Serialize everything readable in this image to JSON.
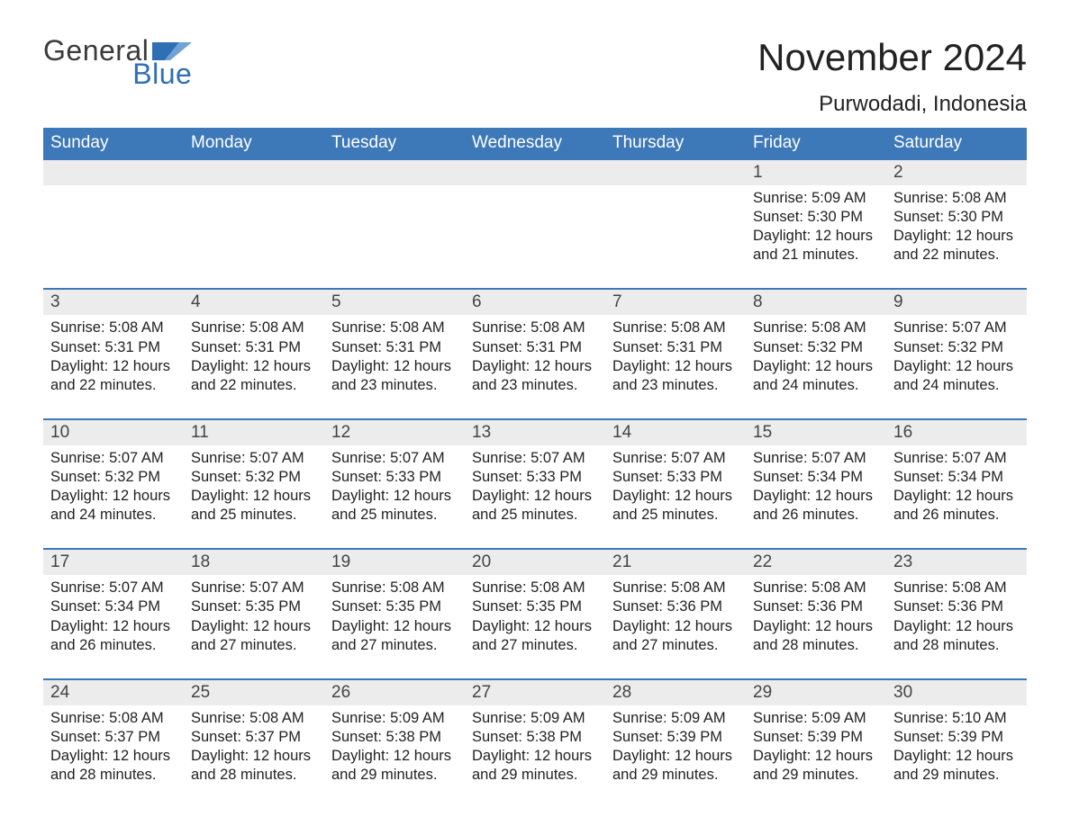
{
  "brand": {
    "word1": "General",
    "word2": "Blue",
    "text_color": "#3a3a3a",
    "accent_color": "#2f6fb3"
  },
  "title": "November 2024",
  "location": "Purwodadi, Indonesia",
  "colors": {
    "header_bg": "#3d78b8",
    "header_text": "#ffffff",
    "daynum_bg": "#ececec",
    "rule": "#3d78b8",
    "body_text": "#222222",
    "page_bg": "#ffffff"
  },
  "weekdays": [
    "Sunday",
    "Monday",
    "Tuesday",
    "Wednesday",
    "Thursday",
    "Friday",
    "Saturday"
  ],
  "weeks": [
    [
      null,
      null,
      null,
      null,
      null,
      {
        "n": "1",
        "sunrise": "Sunrise: 5:09 AM",
        "sunset": "Sunset: 5:30 PM",
        "daylight": "Daylight: 12 hours and 21 minutes."
      },
      {
        "n": "2",
        "sunrise": "Sunrise: 5:08 AM",
        "sunset": "Sunset: 5:30 PM",
        "daylight": "Daylight: 12 hours and 22 minutes."
      }
    ],
    [
      {
        "n": "3",
        "sunrise": "Sunrise: 5:08 AM",
        "sunset": "Sunset: 5:31 PM",
        "daylight": "Daylight: 12 hours and 22 minutes."
      },
      {
        "n": "4",
        "sunrise": "Sunrise: 5:08 AM",
        "sunset": "Sunset: 5:31 PM",
        "daylight": "Daylight: 12 hours and 22 minutes."
      },
      {
        "n": "5",
        "sunrise": "Sunrise: 5:08 AM",
        "sunset": "Sunset: 5:31 PM",
        "daylight": "Daylight: 12 hours and 23 minutes."
      },
      {
        "n": "6",
        "sunrise": "Sunrise: 5:08 AM",
        "sunset": "Sunset: 5:31 PM",
        "daylight": "Daylight: 12 hours and 23 minutes."
      },
      {
        "n": "7",
        "sunrise": "Sunrise: 5:08 AM",
        "sunset": "Sunset: 5:31 PM",
        "daylight": "Daylight: 12 hours and 23 minutes."
      },
      {
        "n": "8",
        "sunrise": "Sunrise: 5:08 AM",
        "sunset": "Sunset: 5:32 PM",
        "daylight": "Daylight: 12 hours and 24 minutes."
      },
      {
        "n": "9",
        "sunrise": "Sunrise: 5:07 AM",
        "sunset": "Sunset: 5:32 PM",
        "daylight": "Daylight: 12 hours and 24 minutes."
      }
    ],
    [
      {
        "n": "10",
        "sunrise": "Sunrise: 5:07 AM",
        "sunset": "Sunset: 5:32 PM",
        "daylight": "Daylight: 12 hours and 24 minutes."
      },
      {
        "n": "11",
        "sunrise": "Sunrise: 5:07 AM",
        "sunset": "Sunset: 5:32 PM",
        "daylight": "Daylight: 12 hours and 25 minutes."
      },
      {
        "n": "12",
        "sunrise": "Sunrise: 5:07 AM",
        "sunset": "Sunset: 5:33 PM",
        "daylight": "Daylight: 12 hours and 25 minutes."
      },
      {
        "n": "13",
        "sunrise": "Sunrise: 5:07 AM",
        "sunset": "Sunset: 5:33 PM",
        "daylight": "Daylight: 12 hours and 25 minutes."
      },
      {
        "n": "14",
        "sunrise": "Sunrise: 5:07 AM",
        "sunset": "Sunset: 5:33 PM",
        "daylight": "Daylight: 12 hours and 25 minutes."
      },
      {
        "n": "15",
        "sunrise": "Sunrise: 5:07 AM",
        "sunset": "Sunset: 5:34 PM",
        "daylight": "Daylight: 12 hours and 26 minutes."
      },
      {
        "n": "16",
        "sunrise": "Sunrise: 5:07 AM",
        "sunset": "Sunset: 5:34 PM",
        "daylight": "Daylight: 12 hours and 26 minutes."
      }
    ],
    [
      {
        "n": "17",
        "sunrise": "Sunrise: 5:07 AM",
        "sunset": "Sunset: 5:34 PM",
        "daylight": "Daylight: 12 hours and 26 minutes."
      },
      {
        "n": "18",
        "sunrise": "Sunrise: 5:07 AM",
        "sunset": "Sunset: 5:35 PM",
        "daylight": "Daylight: 12 hours and 27 minutes."
      },
      {
        "n": "19",
        "sunrise": "Sunrise: 5:08 AM",
        "sunset": "Sunset: 5:35 PM",
        "daylight": "Daylight: 12 hours and 27 minutes."
      },
      {
        "n": "20",
        "sunrise": "Sunrise: 5:08 AM",
        "sunset": "Sunset: 5:35 PM",
        "daylight": "Daylight: 12 hours and 27 minutes."
      },
      {
        "n": "21",
        "sunrise": "Sunrise: 5:08 AM",
        "sunset": "Sunset: 5:36 PM",
        "daylight": "Daylight: 12 hours and 27 minutes."
      },
      {
        "n": "22",
        "sunrise": "Sunrise: 5:08 AM",
        "sunset": "Sunset: 5:36 PM",
        "daylight": "Daylight: 12 hours and 28 minutes."
      },
      {
        "n": "23",
        "sunrise": "Sunrise: 5:08 AM",
        "sunset": "Sunset: 5:36 PM",
        "daylight": "Daylight: 12 hours and 28 minutes."
      }
    ],
    [
      {
        "n": "24",
        "sunrise": "Sunrise: 5:08 AM",
        "sunset": "Sunset: 5:37 PM",
        "daylight": "Daylight: 12 hours and 28 minutes."
      },
      {
        "n": "25",
        "sunrise": "Sunrise: 5:08 AM",
        "sunset": "Sunset: 5:37 PM",
        "daylight": "Daylight: 12 hours and 28 minutes."
      },
      {
        "n": "26",
        "sunrise": "Sunrise: 5:09 AM",
        "sunset": "Sunset: 5:38 PM",
        "daylight": "Daylight: 12 hours and 29 minutes."
      },
      {
        "n": "27",
        "sunrise": "Sunrise: 5:09 AM",
        "sunset": "Sunset: 5:38 PM",
        "daylight": "Daylight: 12 hours and 29 minutes."
      },
      {
        "n": "28",
        "sunrise": "Sunrise: 5:09 AM",
        "sunset": "Sunset: 5:39 PM",
        "daylight": "Daylight: 12 hours and 29 minutes."
      },
      {
        "n": "29",
        "sunrise": "Sunrise: 5:09 AM",
        "sunset": "Sunset: 5:39 PM",
        "daylight": "Daylight: 12 hours and 29 minutes."
      },
      {
        "n": "30",
        "sunrise": "Sunrise: 5:10 AM",
        "sunset": "Sunset: 5:39 PM",
        "daylight": "Daylight: 12 hours and 29 minutes."
      }
    ]
  ]
}
